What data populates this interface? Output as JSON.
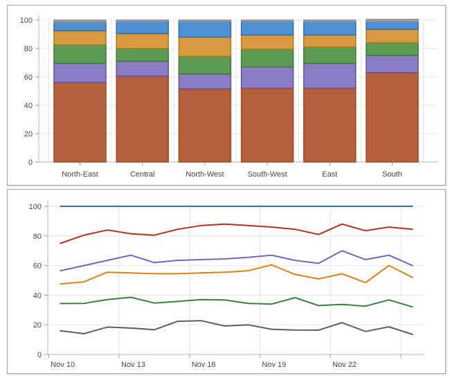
{
  "style": {
    "grid_color": "#e5e5e5",
    "axis_color": "#b3b3b3",
    "tick_color": "#9a9a9a",
    "label_color": "#474747",
    "panel_border": "#a8a8a8"
  },
  "chart_data": [
    {
      "id": "stacked-bar",
      "type": "bar",
      "subtype": "full-stacked",
      "title": "",
      "xlabel": "",
      "ylabel": "",
      "ylim": [
        0,
        100
      ],
      "y_ticks": [
        0,
        20,
        40,
        60,
        80,
        100
      ],
      "grid": true,
      "legend_position": "none",
      "categories": [
        "North-East",
        "Central",
        "North-West",
        "South-West",
        "East",
        "South"
      ],
      "series": [
        {
          "name": "segment-rust",
          "fill": "#b4603c",
          "stroke": "#a3491a",
          "values": [
            56,
            60.5,
            51.5,
            52,
            52,
            63
          ]
        },
        {
          "name": "segment-purple",
          "fill": "#8b7dc4",
          "stroke": "#60519f",
          "values": [
            13.5,
            10.5,
            10.5,
            15,
            17.5,
            12
          ]
        },
        {
          "name": "segment-green",
          "fill": "#5d9b54",
          "stroke": "#3a7a33",
          "values": [
            13,
            9,
            12.5,
            12.5,
            11.5,
            9
          ]
        },
        {
          "name": "segment-orange",
          "fill": "#d89940",
          "stroke": "#b57813",
          "values": [
            10,
            10.5,
            13.5,
            10,
            8.5,
            9.5
          ]
        },
        {
          "name": "segment-blue",
          "fill": "#4e92d3",
          "stroke": "#2a6db4",
          "values": [
            6,
            8.5,
            11,
            9.5,
            9.5,
            5.5
          ]
        },
        {
          "name": "segment-gray",
          "fill": "#a0a0a0",
          "stroke": "#8f8f8f",
          "values": [
            1.5,
            1,
            1,
            1,
            1,
            1.5
          ]
        }
      ]
    },
    {
      "id": "line-chart",
      "type": "line",
      "title": "",
      "xlabel": "",
      "ylabel": "",
      "ylim": [
        0,
        100
      ],
      "y_ticks": [
        0,
        20,
        40,
        60,
        80,
        100
      ],
      "grid": true,
      "legend_position": "none",
      "x_tick_labels": [
        "Nov 10",
        "Nov 13",
        "Nov 16",
        "Nov 19",
        "Nov 22"
      ],
      "x_points": 16,
      "x_ticks_every": 3,
      "series": [
        {
          "name": "line-blue",
          "color": "#366f9e",
          "values": [
            100,
            100,
            100,
            100,
            100,
            100,
            100,
            100,
            100,
            100,
            100,
            100,
            100,
            100,
            100,
            100
          ]
        },
        {
          "name": "line-red",
          "color": "#b0321c",
          "values": [
            75,
            80.5,
            84,
            81.5,
            80.5,
            84.5,
            87,
            88,
            87,
            86,
            84.5,
            81,
            88,
            83.5,
            86,
            84.5
          ]
        },
        {
          "name": "line-purple",
          "color": "#7563bd",
          "values": [
            56.5,
            60,
            63.5,
            67,
            62,
            63.5,
            64,
            64.5,
            65.5,
            67,
            63.5,
            61.5,
            70,
            64,
            67,
            60
          ]
        },
        {
          "name": "line-orange",
          "color": "#de8112",
          "values": [
            47.5,
            49,
            55.5,
            55,
            54.5,
            54.5,
            55,
            55.5,
            56.5,
            60.5,
            54,
            51,
            54.5,
            48.5,
            60,
            52
          ]
        },
        {
          "name": "line-green",
          "color": "#36813c",
          "values": [
            34.4,
            34.5,
            37,
            38.6,
            34.7,
            35.8,
            37,
            36.8,
            34.5,
            34,
            38.3,
            33,
            33.8,
            32.6,
            36.8,
            32.1
          ]
        },
        {
          "name": "line-gray",
          "color": "#5d5d5d",
          "values": [
            16,
            14,
            18.5,
            17.8,
            16.7,
            22.4,
            22.8,
            19.2,
            20,
            17,
            16.5,
            16.4,
            21.5,
            15.5,
            18.7,
            13.5
          ]
        }
      ]
    }
  ]
}
